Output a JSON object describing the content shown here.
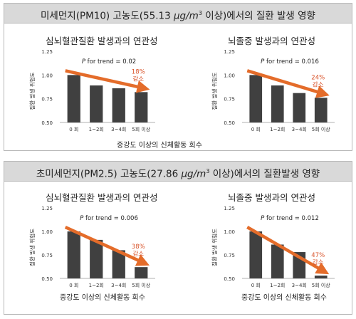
{
  "panels": [
    {
      "id": "pm10",
      "title_pre": "미세먼지(PM10) 고농도(55.13 ",
      "title_unit": "μg/m",
      "title_sup": "3",
      "title_post": " 이상)에서의 질환 발생 영향",
      "x_caption": "중강도 이상의 신체활동 회수"
    },
    {
      "id": "pm25",
      "title_pre": "초미세먼지(PM2.5) 고농도(27.86 ",
      "title_unit": "μg/m",
      "title_sup": "3",
      "title_post": " 이상)에서의 질환발생 영향",
      "x_caption": "중강도 이상의 신체활동 회수"
    }
  ],
  "chart_data": [
    {
      "type": "bar",
      "title": "심뇌혈관질환 발생과의 연관성",
      "ylabel": "질환 발생 위험도",
      "categories": [
        "0 회",
        "1~2회",
        "3~4회",
        "5회 이상"
      ],
      "values": [
        1.0,
        0.89,
        0.86,
        0.82
      ],
      "ylim": [
        0.5,
        1.25
      ],
      "yticks": [
        "0.50",
        "0.75",
        "1.00",
        "1.25"
      ],
      "trend_label": "P for trend = 0.02",
      "reduction_pct": "18%",
      "reduction_word": "감소",
      "bar_color": "#404040",
      "arrow_color": "#e46c2a"
    },
    {
      "type": "bar",
      "title": "뇌졸중 발생과의 연관성",
      "ylabel": "질환 발생 위험도",
      "categories": [
        "0 회",
        "1~2회",
        "3~4회",
        "5회 이상"
      ],
      "values": [
        1.0,
        0.89,
        0.81,
        0.76
      ],
      "ylim": [
        0.5,
        1.25
      ],
      "yticks": [
        "0.50",
        "0.75",
        "1.00",
        "1.25"
      ],
      "trend_label": "P for trend = 0.016",
      "reduction_pct": "24%",
      "reduction_word": "감소",
      "bar_color": "#404040",
      "arrow_color": "#e46c2a"
    },
    {
      "type": "bar",
      "title": "심뇌혈관질환 발생과의 연관성",
      "ylabel": "질환 발생 위험도",
      "categories": [
        "0 회",
        "1~2회",
        "3~4회",
        "5회 이상"
      ],
      "values": [
        1.0,
        0.91,
        0.8,
        0.62
      ],
      "ylim": [
        0.5,
        1.25
      ],
      "yticks": [
        "0.50",
        "0.75",
        "1.00",
        "1.25"
      ],
      "trend_label": "P for trend = 0.006",
      "reduction_pct": "38%",
      "reduction_word": "감소",
      "bar_color": "#404040",
      "arrow_color": "#e46c2a"
    },
    {
      "type": "bar",
      "title": "뇌졸중 발생과의 연관성",
      "ylabel": "질환 발생 위험도",
      "categories": [
        "0 회",
        "1~2회",
        "3~4회",
        "5회 이상"
      ],
      "values": [
        1.0,
        0.86,
        0.78,
        0.53
      ],
      "ylim": [
        0.5,
        1.25
      ],
      "yticks": [
        "0.50",
        "0.75",
        "1.00",
        "1.25"
      ],
      "trend_label": "P for trend = 0.012",
      "reduction_pct": "47%",
      "reduction_word": "감소",
      "bar_color": "#404040",
      "arrow_color": "#e46c2a"
    }
  ]
}
